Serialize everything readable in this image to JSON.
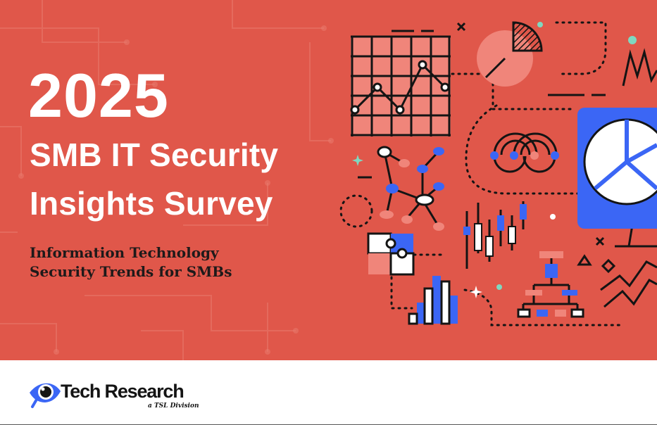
{
  "cover": {
    "year": "2025",
    "title_line1": "SMB IT Security",
    "title_line2": "Insights Survey",
    "subtitle_line1": "Information Technology",
    "subtitle_line2": "Security Trends for SMBs"
  },
  "footer": {
    "brand_name": "Tech Research",
    "brand_tagline": "a TSL Division",
    "logo_icon": "eye-icon"
  },
  "colors": {
    "hero_background": "#e0574a",
    "accent_blue": "#3b66f5",
    "accent_pink": "#f0857a",
    "accent_teal": "#7fd8c0",
    "ink": "#141414",
    "white": "#ffffff"
  }
}
